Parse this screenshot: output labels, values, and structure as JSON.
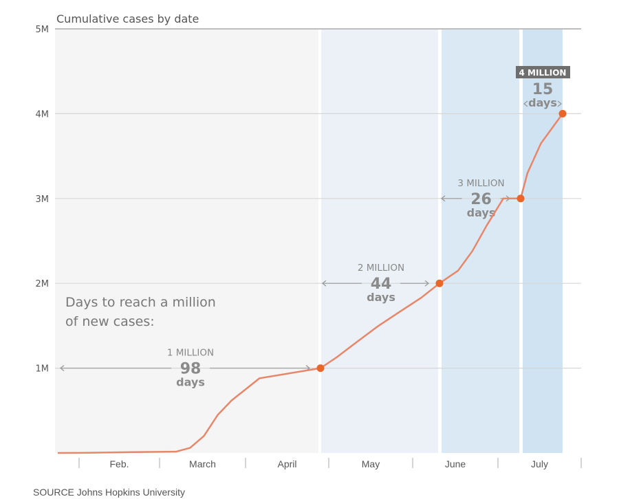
{
  "chart_data": {
    "type": "line",
    "title": "Cumulative cases by date",
    "source": "SOURCE Johns Hopkins University",
    "annotation_intro": [
      "Days to reach a million",
      "of new cases:"
    ],
    "xlabel": "",
    "ylabel": "",
    "x_unit": "days since Jan. 22",
    "ylim": [
      0,
      5000000
    ],
    "yticks": [
      {
        "value": 1000000,
        "label": "1M"
      },
      {
        "value": 2000000,
        "label": "2M"
      },
      {
        "value": 3000000,
        "label": "3M"
      },
      {
        "value": 4000000,
        "label": "4M"
      },
      {
        "value": 5000000,
        "label": "5M"
      }
    ],
    "months": [
      {
        "label": "Feb.",
        "start": 10,
        "end": 39
      },
      {
        "label": "March",
        "start": 39,
        "end": 70
      },
      {
        "label": "April",
        "start": 70,
        "end": 100
      },
      {
        "label": "May",
        "start": 100,
        "end": 131
      },
      {
        "label": "June",
        "start": 131,
        "end": 161
      },
      {
        "label": "July",
        "start": 161,
        "end": 192
      }
    ],
    "series": [
      {
        "name": "Cumulative cases",
        "color": "#e8866a",
        "points": [
          [
            0,
            0
          ],
          [
            10,
            1000
          ],
          [
            30,
            10000
          ],
          [
            45,
            15000
          ],
          [
            50,
            60000
          ],
          [
            55,
            200000
          ],
          [
            60,
            450000
          ],
          [
            65,
            620000
          ],
          [
            70,
            750000
          ],
          [
            75,
            880000
          ],
          [
            98,
            1000000
          ],
          [
            103,
            1130000
          ],
          [
            110,
            1300000
          ],
          [
            118,
            1490000
          ],
          [
            126,
            1660000
          ],
          [
            134,
            1830000
          ],
          [
            142,
            2000000
          ],
          [
            147,
            2150000
          ],
          [
            152,
            2380000
          ],
          [
            157,
            2680000
          ],
          [
            163,
            3000000
          ],
          [
            168,
            3000000
          ],
          [
            172,
            3300000
          ],
          [
            177,
            3650000
          ],
          [
            183,
            4000000
          ]
        ]
      }
    ],
    "milestones": [
      {
        "label": "1 MILLION",
        "days": "98",
        "days_label": "days",
        "day": 98,
        "value": 1000000,
        "span_start": 0,
        "highlight": false
      },
      {
        "label": "2 MILLION",
        "days": "44",
        "days_label": "days",
        "day": 142,
        "value": 2000000,
        "span_start": 98,
        "highlight": false
      },
      {
        "label": "3 MILLION",
        "days": "26",
        "days_label": "days",
        "day": 168,
        "value": 3000000,
        "span_start": 142,
        "highlight": false
      },
      {
        "label": "4 MILLION",
        "days": "15",
        "days_label": "days",
        "day": 183,
        "value": 4000000,
        "span_start": 168,
        "highlight": true
      }
    ],
    "panel_colors": [
      "#f5f5f5",
      "#ebf1f6",
      "#dbe9f4",
      "#cfe3f2"
    ],
    "marker_color": "#e8662a",
    "badge_color": "#6e6e6e",
    "grid": true
  }
}
